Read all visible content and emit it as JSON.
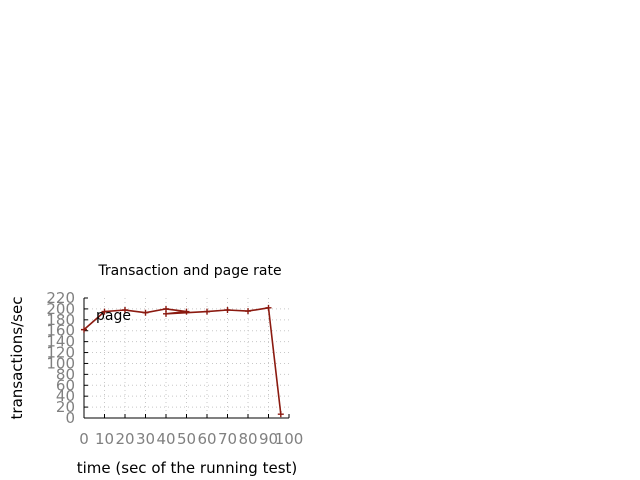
{
  "chart_data": {
    "type": "line",
    "title": "Transaction and page rate",
    "xlabel": "time (sec of the running test)",
    "ylabel": "transactions/sec",
    "xlim": [
      0,
      100
    ],
    "ylim": [
      0,
      220
    ],
    "xticks": [
      0,
      10,
      20,
      30,
      40,
      50,
      60,
      70,
      80,
      90,
      100
    ],
    "yticks": [
      0,
      20,
      40,
      60,
      80,
      100,
      120,
      140,
      160,
      180,
      200,
      220
    ],
    "grid": true,
    "legend_position": "top-left",
    "colors": {
      "series": "#8b1a10",
      "tick": "#808080",
      "grid": "#c8c8c8",
      "axis": "#000000"
    },
    "series": [
      {
        "name": "page",
        "points": [
          [
            0,
            162
          ],
          [
            10,
            195
          ],
          [
            20,
            198
          ],
          [
            30,
            193
          ],
          [
            40,
            200
          ],
          [
            50,
            195
          ],
          [
            40,
            191
          ],
          [
            60,
            195
          ],
          [
            70,
            198
          ],
          [
            80,
            196
          ],
          [
            90,
            202
          ],
          [
            96,
            7
          ]
        ]
      }
    ]
  }
}
